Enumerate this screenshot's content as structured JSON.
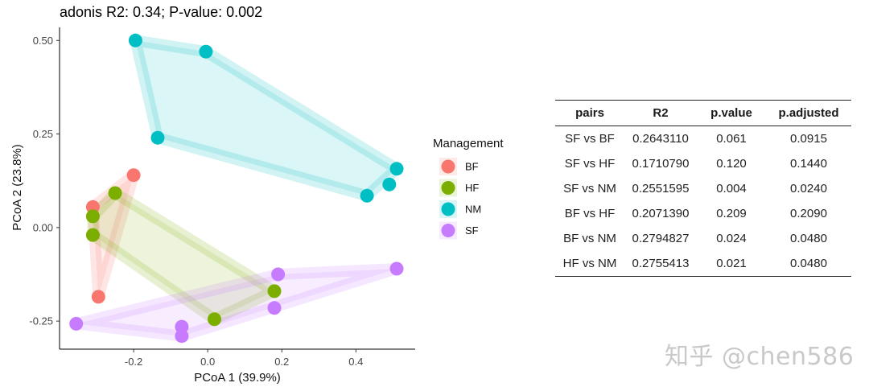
{
  "chart_data": {
    "type": "scatter",
    "title": "adonis R2: 0.34; P-value: 0.002",
    "xlabel": "PCoA 1 (39.9%)",
    "ylabel": "PCoA 2 (23.8%)",
    "xlim": [
      -0.4,
      0.56
    ],
    "ylim": [
      -0.325,
      0.535
    ],
    "x_ticks": [
      -0.2,
      0.0,
      0.2,
      0.4
    ],
    "x_tick_labels": [
      "-0.2",
      "0.0",
      "0.2",
      "0.4"
    ],
    "y_ticks": [
      0.5,
      0.25,
      0.0,
      -0.25
    ],
    "y_tick_labels": [
      "0.50",
      "0.25",
      "0.00",
      "-0.25"
    ],
    "grid": false,
    "legend": {
      "title": "Management",
      "placement": "right"
    },
    "series": [
      {
        "name": "BF",
        "color": "#F8766D",
        "hull": [
          [
            -0.2,
            0.14
          ],
          [
            -0.31,
            0.055
          ],
          [
            -0.295,
            -0.185
          ]
        ],
        "points": [
          [
            -0.2,
            0.14
          ],
          [
            -0.31,
            0.055
          ],
          [
            -0.295,
            -0.185
          ]
        ]
      },
      {
        "name": "HF",
        "color": "#7CAE00",
        "hull": [
          [
            -0.25,
            0.092
          ],
          [
            -0.31,
            0.03
          ],
          [
            -0.31,
            -0.02
          ],
          [
            0.018,
            -0.245
          ],
          [
            0.18,
            -0.17
          ]
        ],
        "points": [
          [
            -0.25,
            0.092
          ],
          [
            -0.31,
            0.03
          ],
          [
            -0.31,
            -0.02
          ],
          [
            0.18,
            -0.17
          ],
          [
            0.018,
            -0.245
          ]
        ]
      },
      {
        "name": "NM",
        "color": "#00BFC4",
        "hull": [
          [
            -0.195,
            0.5
          ],
          [
            -0.005,
            0.47
          ],
          [
            0.51,
            0.157
          ],
          [
            0.43,
            0.085
          ],
          [
            -0.135,
            0.24
          ]
        ],
        "points": [
          [
            -0.195,
            0.5
          ],
          [
            -0.005,
            0.47
          ],
          [
            -0.135,
            0.24
          ],
          [
            0.51,
            0.157
          ],
          [
            0.49,
            0.115
          ],
          [
            0.43,
            0.085
          ]
        ]
      },
      {
        "name": "SF",
        "color": "#C77CFF",
        "hull": [
          [
            -0.355,
            -0.257
          ],
          [
            0.19,
            -0.125
          ],
          [
            0.51,
            -0.11
          ],
          [
            -0.07,
            -0.29
          ]
        ],
        "points": [
          [
            0.19,
            -0.125
          ],
          [
            0.51,
            -0.11
          ],
          [
            0.18,
            -0.215
          ],
          [
            -0.355,
            -0.257
          ],
          [
            -0.07,
            -0.265
          ],
          [
            -0.07,
            -0.29
          ]
        ]
      }
    ]
  },
  "table": {
    "headers": [
      "pairs",
      "R2",
      "p.value",
      "p.adjusted"
    ],
    "rows": [
      [
        "SF vs BF",
        "0.2643110",
        "0.061",
        "0.0915"
      ],
      [
        "SF vs HF",
        "0.1710790",
        "0.120",
        "0.1440"
      ],
      [
        "SF vs NM",
        "0.2551595",
        "0.004",
        "0.0240"
      ],
      [
        "BF vs HF",
        "0.2071390",
        "0.209",
        "0.2090"
      ],
      [
        "BF vs NM",
        "0.2794827",
        "0.024",
        "0.0480"
      ],
      [
        "HF vs NM",
        "0.2755413",
        "0.021",
        "0.0480"
      ]
    ]
  },
  "watermark": "知乎 @chen586"
}
